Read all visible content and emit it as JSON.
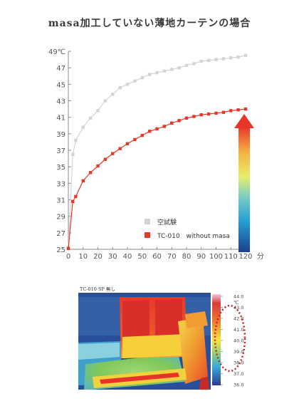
{
  "page": {
    "title": "masa加工していない薄地カーテンの場合",
    "thermo_caption": "TC-010 SP 無し"
  },
  "chart_data": {
    "type": "line",
    "title": "masa加工していない薄地カーテンの場合",
    "xlabel": "分",
    "ylabel": "℃",
    "xlim": [
      0,
      120
    ],
    "ylim": [
      25,
      49
    ],
    "x_ticks": [
      0,
      10,
      20,
      30,
      40,
      50,
      60,
      70,
      80,
      90,
      100,
      110,
      120
    ],
    "y_ticks": [
      25,
      27,
      29,
      31,
      33,
      35,
      37,
      39,
      41,
      43,
      45,
      47,
      49
    ],
    "y_top_label": "49℃",
    "grid": false,
    "legend_position": "bottom-right",
    "series": [
      {
        "name": "空試験",
        "color": "#d4d4d4",
        "x": [
          0,
          3,
          5,
          10,
          15,
          20,
          25,
          30,
          35,
          40,
          45,
          50,
          55,
          60,
          65,
          70,
          75,
          80,
          85,
          90,
          95,
          100,
          105,
          110,
          115,
          120
        ],
        "values": [
          25.2,
          36.5,
          38.2,
          39.8,
          40.9,
          41.8,
          43.0,
          43.8,
          44.6,
          45.0,
          45.4,
          45.8,
          46.2,
          46.4,
          46.6,
          46.8,
          47.0,
          47.3,
          47.5,
          47.8,
          47.9,
          48.0,
          48.1,
          48.2,
          48.3,
          48.5
        ]
      },
      {
        "name": "TC-010　without masa",
        "color": "#e4382a",
        "x": [
          0,
          3,
          5,
          10,
          15,
          20,
          25,
          30,
          35,
          40,
          45,
          50,
          55,
          60,
          65,
          70,
          75,
          80,
          85,
          90,
          95,
          100,
          105,
          110,
          115,
          120
        ],
        "values": [
          25.1,
          30.8,
          31.4,
          33.3,
          34.3,
          35.1,
          35.9,
          36.6,
          37.2,
          37.8,
          38.3,
          38.8,
          39.3,
          39.6,
          39.9,
          40.3,
          40.6,
          40.9,
          41.1,
          41.3,
          41.4,
          41.5,
          41.6,
          41.8,
          41.9,
          42.0
        ]
      }
    ]
  },
  "thermo_scale": {
    "labels": [
      "44.0",
      "43.0",
      "42.0",
      "41.0",
      "40.0",
      "39.0",
      "38.0",
      "37.0",
      "36.0"
    ],
    "unit": "℃"
  }
}
